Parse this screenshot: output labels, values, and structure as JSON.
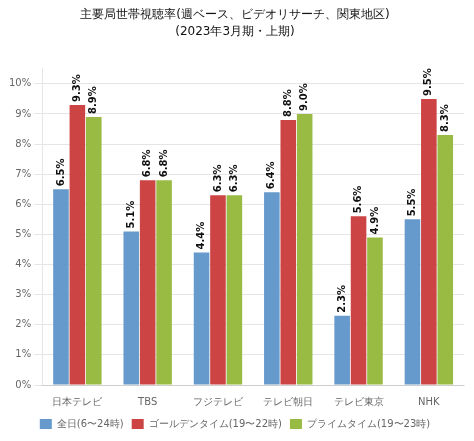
{
  "chart_data": {
    "type": "bar",
    "title": "主要局世帯視聴率(週ベース、ビデオリサーチ、関東地区)",
    "subtitle": "(2023年3月期・上期)",
    "categories": [
      "日本テレビ",
      "TBS",
      "フジテレビ",
      "テレビ朝日",
      "テレビ東京",
      "NHK"
    ],
    "series": [
      {
        "name": "全日(6〜24時)",
        "color": "#6699cc",
        "values": [
          6.5,
          5.1,
          4.4,
          6.4,
          2.3,
          5.5
        ],
        "value_labels": [
          "6.5%",
          "5.1%",
          "4.4%",
          "6.4%",
          "2.3%",
          "5.5%"
        ]
      },
      {
        "name": "ゴールデンタイム(19〜22時)",
        "color": "#cc4444",
        "values": [
          9.3,
          6.8,
          6.3,
          8.8,
          5.6,
          9.5
        ],
        "value_labels": [
          "9.3%",
          "6.8%",
          "6.3%",
          "8.8%",
          "5.6%",
          "9.5%"
        ]
      },
      {
        "name": "プライムタイム(19〜23時)",
        "color": "#99bb44",
        "values": [
          8.9,
          6.8,
          6.3,
          9.0,
          4.9,
          8.3
        ],
        "value_labels": [
          "8.9%",
          "6.8%",
          "6.3%",
          "9.0%",
          "4.9%",
          "8.3%"
        ]
      }
    ],
    "ylim": [
      0,
      10.5
    ],
    "yticks": [
      {
        "value": 0,
        "label": "0%"
      },
      {
        "value": 1,
        "label": "1%"
      },
      {
        "value": 2,
        "label": "2%"
      },
      {
        "value": 3,
        "label": "3%"
      },
      {
        "value": 4,
        "label": "4%"
      },
      {
        "value": 5,
        "label": "5%"
      },
      {
        "value": 6,
        "label": "6%"
      },
      {
        "value": 7,
        "label": "7%"
      },
      {
        "value": 8,
        "label": "8%"
      },
      {
        "value": 9,
        "label": "9%"
      },
      {
        "value": 10,
        "label": "10%"
      }
    ],
    "grid": true,
    "legend": "bottom",
    "data_labels": true
  }
}
